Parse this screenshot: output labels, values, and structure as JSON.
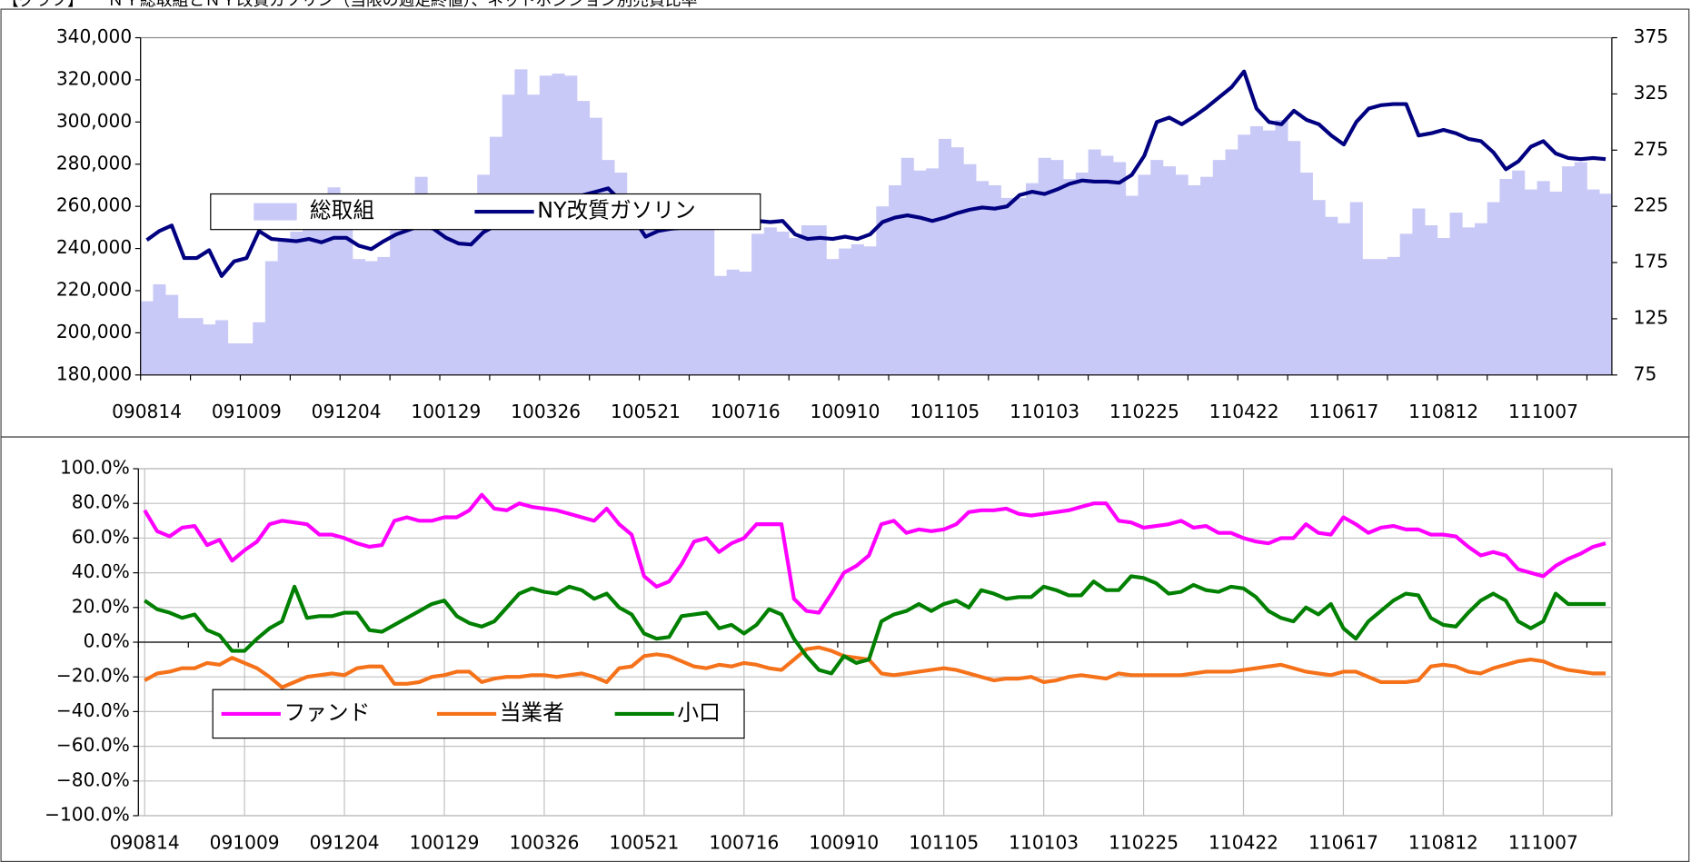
{
  "chart_data": [
    {
      "type": "combo",
      "title": "【グラフ】　　ＮＹ総取組とＮＹ改質ガソリン（当限の週足終値）、ネットポジション別売買比率",
      "categories": [
        "090814",
        null,
        null,
        null,
        null,
        null,
        null,
        null,
        "091009",
        null,
        null,
        null,
        null,
        null,
        null,
        null,
        "091204",
        null,
        null,
        null,
        null,
        null,
        null,
        null,
        "100129",
        null,
        null,
        null,
        null,
        null,
        null,
        null,
        "100326",
        null,
        null,
        null,
        null,
        null,
        null,
        null,
        "100521",
        null,
        null,
        null,
        null,
        null,
        null,
        null,
        "100716",
        null,
        null,
        null,
        null,
        null,
        null,
        null,
        "100910",
        null,
        null,
        null,
        null,
        null,
        null,
        null,
        "101105",
        null,
        null,
        null,
        null,
        null,
        null,
        null,
        "110103",
        null,
        null,
        null,
        null,
        null,
        null,
        null,
        "110225",
        null,
        null,
        null,
        null,
        null,
        null,
        null,
        "110422",
        null,
        null,
        null,
        null,
        null,
        null,
        null,
        "110617",
        null,
        null,
        null,
        null,
        null,
        null,
        null,
        "110812",
        null,
        null,
        null,
        null,
        null,
        null,
        null,
        "111007",
        null,
        null,
        null,
        null,
        null
      ],
      "series": [
        {
          "name": "総取組",
          "type": "bar",
          "color": "#c9c9f7",
          "values": [
            215000,
            223000,
            218000,
            207000,
            207000,
            204000,
            206000,
            195000,
            195000,
            205000,
            234000,
            245000,
            248000,
            250000,
            265000,
            269000,
            262000,
            235000,
            234000,
            236000,
            250000,
            262000,
            274000,
            262000,
            255000,
            252000,
            260000,
            275000,
            293000,
            313000,
            325000,
            313000,
            322000,
            323000,
            322000,
            310000,
            302000,
            282000,
            276000,
            262000,
            255000,
            250000,
            255000,
            255000,
            253000,
            251000,
            227000,
            230000,
            229000,
            247000,
            250000,
            248000,
            245000,
            251000,
            251000,
            235000,
            240000,
            242000,
            241000,
            260000,
            270000,
            283000,
            277000,
            278000,
            292000,
            288000,
            280000,
            272000,
            270000,
            264000,
            264000,
            271000,
            283000,
            282000,
            273000,
            276000,
            287000,
            284000,
            281000,
            265000,
            275000,
            282000,
            279000,
            275000,
            270000,
            274000,
            282000,
            287000,
            294000,
            298000,
            296000,
            301000,
            291000,
            276000,
            263000,
            255000,
            252000,
            262000,
            235000,
            235000,
            236000,
            247000,
            259000,
            251000,
            245000,
            257000,
            250000,
            252000,
            262000,
            273000,
            277000,
            268000,
            272000,
            267000,
            279000,
            281000,
            268000,
            266000
          ]
        },
        {
          "name": "NY改質ガソリン",
          "type": "line",
          "axis": "y2",
          "color": "#000080",
          "values": [
            195,
            203,
            208,
            179,
            179,
            186,
            163,
            176,
            179,
            203,
            196,
            195,
            194,
            196,
            193,
            197,
            197,
            190,
            187,
            194,
            200,
            204,
            208,
            205,
            197,
            192,
            191,
            202,
            208,
            214,
            219,
            222,
            225,
            229,
            232,
            235,
            238,
            241,
            230,
            215,
            198,
            203,
            205,
            206,
            208,
            209,
            211,
            212,
            212,
            212,
            211,
            212,
            200,
            196,
            197,
            196,
            198,
            196,
            200,
            211,
            215,
            217,
            215,
            212,
            215,
            219,
            222,
            224,
            223,
            225,
            235,
            238,
            236,
            240,
            245,
            248,
            247,
            247,
            246,
            253,
            270,
            300,
            304,
            298,
            305,
            313,
            322,
            331,
            345,
            312,
            300,
            298,
            310,
            302,
            298,
            288,
            280,
            300,
            312,
            315,
            316,
            316,
            288,
            290,
            293,
            290,
            285,
            283,
            273,
            258,
            265,
            278,
            283,
            272,
            268,
            267,
            268,
            267
          ]
        }
      ],
      "ylim": [
        180000,
        340000
      ],
      "yticks": [
        {
          "value": 180000,
          "label": "180,000"
        },
        {
          "value": 200000,
          "label": "200,000"
        },
        {
          "value": 220000,
          "label": "220,000"
        },
        {
          "value": 240000,
          "label": "240,000"
        },
        {
          "value": 260000,
          "label": "260,000"
        },
        {
          "value": 280000,
          "label": "280,000"
        },
        {
          "value": 300000,
          "label": "300,000"
        },
        {
          "value": 320000,
          "label": "320,000"
        },
        {
          "value": 340000,
          "label": "340,000"
        }
      ],
      "y2lim": [
        75,
        375
      ],
      "y2ticks": [
        75,
        125,
        175,
        225,
        275,
        325,
        375
      ],
      "grid": false
    },
    {
      "type": "line",
      "categories": [
        "090814",
        null,
        null,
        null,
        null,
        null,
        null,
        null,
        "091009",
        null,
        null,
        null,
        null,
        null,
        null,
        null,
        "091204",
        null,
        null,
        null,
        null,
        null,
        null,
        null,
        "100129",
        null,
        null,
        null,
        null,
        null,
        null,
        null,
        "100326",
        null,
        null,
        null,
        null,
        null,
        null,
        null,
        "100521",
        null,
        null,
        null,
        null,
        null,
        null,
        null,
        "100716",
        null,
        null,
        null,
        null,
        null,
        null,
        null,
        "100910",
        null,
        null,
        null,
        null,
        null,
        null,
        null,
        "101105",
        null,
        null,
        null,
        null,
        null,
        null,
        null,
        "110103",
        null,
        null,
        null,
        null,
        null,
        null,
        null,
        "110225",
        null,
        null,
        null,
        null,
        null,
        null,
        null,
        "110422",
        null,
        null,
        null,
        null,
        null,
        null,
        null,
        "110617",
        null,
        null,
        null,
        null,
        null,
        null,
        null,
        "110812",
        null,
        null,
        null,
        null,
        null,
        null,
        null,
        "111007",
        null,
        null,
        null,
        null,
        null
      ],
      "series": [
        {
          "name": "ファンド",
          "color": "#ff00ff",
          "values": [
            76,
            64,
            61,
            66,
            67,
            56,
            59,
            47,
            53,
            58,
            68,
            70,
            69,
            68,
            62,
            62,
            60,
            57,
            55,
            56,
            70,
            72,
            70,
            70,
            72,
            72,
            76,
            85,
            77,
            76,
            80,
            78,
            77,
            76,
            74,
            72,
            70,
            77,
            68,
            62,
            38,
            32,
            35,
            45,
            58,
            60,
            52,
            57,
            60,
            68,
            68,
            68,
            25,
            18,
            17,
            28,
            40,
            44,
            50,
            68,
            70,
            63,
            65,
            64,
            65,
            68,
            75,
            76,
            76,
            77,
            74,
            73,
            74,
            75,
            76,
            78,
            80,
            80,
            70,
            69,
            66,
            67,
            68,
            70,
            66,
            67,
            63,
            63,
            60,
            58,
            57,
            60,
            60,
            68,
            63,
            62,
            72,
            68,
            63,
            66,
            67,
            65,
            65,
            62,
            62,
            61,
            55,
            50,
            52,
            50,
            42,
            40,
            38,
            44,
            48,
            51,
            55,
            57
          ]
        },
        {
          "name": "当業者",
          "color": "#f5721b",
          "values": [
            -22,
            -18,
            -17,
            -15,
            -15,
            -12,
            -13,
            -9,
            -12,
            -15,
            -20,
            -26,
            -23,
            -20,
            -19,
            -18,
            -19,
            -15,
            -14,
            -14,
            -24,
            -24,
            -23,
            -20,
            -19,
            -17,
            -17,
            -23,
            -21,
            -20,
            -20,
            -19,
            -19,
            -20,
            -19,
            -18,
            -20,
            -23,
            -15,
            -14,
            -8,
            -7,
            -8,
            -11,
            -14,
            -15,
            -13,
            -14,
            -12,
            -13,
            -15,
            -16,
            -10,
            -4,
            -3,
            -5,
            -8,
            -9,
            -10,
            -18,
            -19,
            -18,
            -17,
            -16,
            -15,
            -16,
            -18,
            -20,
            -22,
            -21,
            -21,
            -20,
            -23,
            -22,
            -20,
            -19,
            -20,
            -21,
            -18,
            -19,
            -19,
            -19,
            -19,
            -19,
            -18,
            -17,
            -17,
            -17,
            -16,
            -15,
            -14,
            -13,
            -15,
            -17,
            -18,
            -19,
            -17,
            -17,
            -20,
            -23,
            -23,
            -23,
            -22,
            -14,
            -13,
            -14,
            -17,
            -18,
            -15,
            -13,
            -11,
            -10,
            -11,
            -14,
            -16,
            -17,
            -18,
            -18
          ]
        },
        {
          "name": "小口",
          "color": "#008000",
          "values": [
            24,
            19,
            17,
            14,
            16,
            7,
            4,
            -5,
            -5,
            2,
            8,
            12,
            32,
            14,
            15,
            15,
            17,
            17,
            7,
            6,
            10,
            14,
            18,
            22,
            24,
            15,
            11,
            9,
            12,
            20,
            28,
            31,
            29,
            28,
            32,
            30,
            25,
            28,
            20,
            16,
            5,
            2,
            3,
            15,
            16,
            17,
            8,
            10,
            5,
            10,
            19,
            16,
            2,
            -8,
            -16,
            -18,
            -8,
            -12,
            -10,
            12,
            16,
            18,
            22,
            18,
            22,
            24,
            20,
            30,
            28,
            25,
            26,
            26,
            32,
            30,
            27,
            27,
            35,
            30,
            30,
            38,
            37,
            34,
            28,
            29,
            33,
            30,
            29,
            32,
            31,
            26,
            18,
            14,
            12,
            20,
            16,
            22,
            8,
            2,
            12,
            18,
            24,
            28,
            27,
            14,
            10,
            9,
            17,
            24,
            28,
            24,
            12,
            8,
            12,
            28,
            22,
            22,
            22,
            22
          ]
        }
      ],
      "ylim": [
        -100,
        100
      ],
      "yticks": [
        {
          "value": -100,
          "label": "−100.0%"
        },
        {
          "value": -80,
          "label": "−80.0%"
        },
        {
          "value": -60,
          "label": "−60.0%"
        },
        {
          "value": -40,
          "label": "−40.0%"
        },
        {
          "value": -20,
          "label": "−20.0%"
        },
        {
          "value": 0,
          "label": "0.0%"
        },
        {
          "value": 20,
          "label": "20.0%"
        },
        {
          "value": 40,
          "label": "40.0%"
        },
        {
          "value": 60,
          "label": "60.0%"
        },
        {
          "value": 80,
          "label": "80.0%"
        },
        {
          "value": 100,
          "label": "100.0%"
        }
      ],
      "grid": true
    }
  ]
}
